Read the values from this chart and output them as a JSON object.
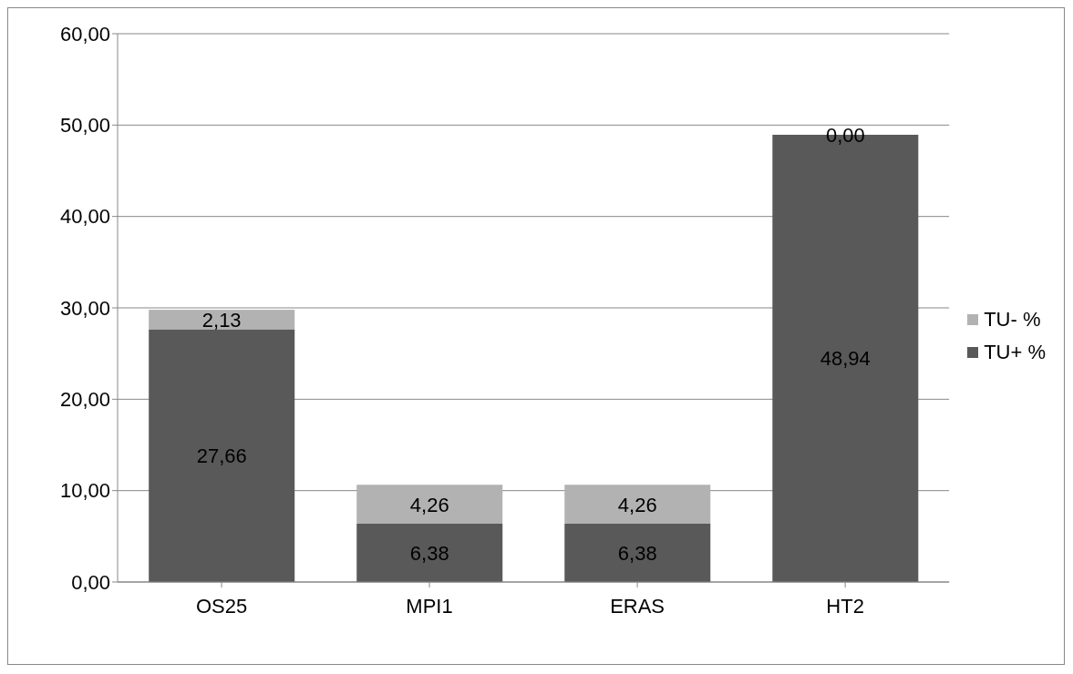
{
  "chart_data": {
    "type": "bar",
    "stacked": true,
    "categories": [
      "OS25",
      "MPI1",
      "ERAS",
      "HT2"
    ],
    "series": [
      {
        "name": "TU+ %",
        "color": "#595959",
        "values": [
          27.66,
          6.38,
          6.38,
          48.94
        ],
        "value_labels": [
          "27,66",
          "6,38",
          "6,38",
          "48,94"
        ]
      },
      {
        "name": "TU- %",
        "color": "#b2b2b2",
        "values": [
          2.13,
          4.26,
          4.26,
          0.0
        ],
        "value_labels": [
          "2,13",
          "4,26",
          "4,26",
          "0,00"
        ]
      }
    ],
    "ylim": [
      0,
      60
    ],
    "yticks": [
      {
        "value": 0,
        "label": "0,00"
      },
      {
        "value": 10,
        "label": "10,00"
      },
      {
        "value": 20,
        "label": "20,00"
      },
      {
        "value": 30,
        "label": "30,00"
      },
      {
        "value": 40,
        "label": "40,00"
      },
      {
        "value": 50,
        "label": "50,00"
      },
      {
        "value": 60,
        "label": "60,00"
      }
    ],
    "grid": "y",
    "legend": "right"
  }
}
